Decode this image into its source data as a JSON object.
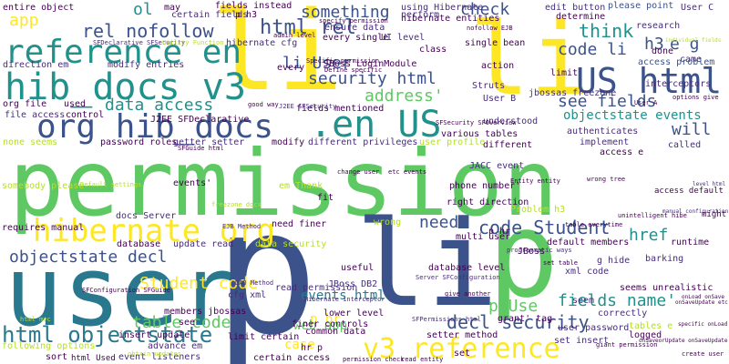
{
  "background": "#ffffff",
  "palette": {
    "yellow": "#fde725",
    "lightgreen": "#5ec962",
    "green": "#21918c",
    "teal": "#2a788e",
    "navy": "#3b528b",
    "purple": "#472d7b",
    "lime": "#b5de2b",
    "dark": "#440154"
  },
  "words": [
    {
      "text": "permission",
      "color": "#5ec962"
    },
    {
      "text": "user",
      "color": "#2a788e"
    },
    {
      "text": "p",
      "color": "#3b528b"
    },
    {
      "text": "li",
      "color": "#fde725"
    },
    {
      "text": "li",
      "color": "#fde725"
    },
    {
      "text": "li",
      "color": "#3b528b"
    },
    {
      "text": "p",
      "color": "#5ec962"
    },
    {
      "text": "hib_docs v3",
      "color": "#21918c"
    },
    {
      "text": "reference en",
      "color": "#21918c"
    },
    {
      "text": "org hib_docs",
      "color": "#3b528b"
    },
    {
      "text": ".en US",
      "color": "#21918c"
    },
    {
      "text": "US html",
      "color": "#3b528b"
    },
    {
      "text": "hibernate org",
      "color": "#fde725"
    },
    {
      "text": "v3 reference",
      "color": "#fde725"
    },
    {
      "text": "html objectstate",
      "color": "#2a788e"
    },
    {
      "text": "code Student",
      "color": "#3b528b"
    },
    {
      "text": "rel nofollow",
      "color": "#3b528b"
    },
    {
      "text": "html rel",
      "color": "#3b528b"
    },
    {
      "text": "security html",
      "color": "#3b528b"
    },
    {
      "text": "data access",
      "color": "#21918c"
    },
    {
      "text": "objectstate decl",
      "color": "#3b528b"
    },
    {
      "text": "decl security",
      "color": "#3b528b"
    },
    {
      "text": "see fields",
      "color": "#3b528b"
    },
    {
      "text": "fields name'",
      "color": "#21918c"
    },
    {
      "text": "table code",
      "color": "#5ec962"
    },
    {
      "text": "Student code",
      "color": "#fde725"
    },
    {
      "text": "li User",
      "color": "#3b528b"
    },
    {
      "text": "code li",
      "color": "#3b528b"
    },
    {
      "text": "something",
      "color": "#3b528b"
    },
    {
      "text": "check",
      "color": "#3b528b"
    },
    {
      "text": "address'",
      "color": "#5ec962"
    },
    {
      "text": "think",
      "color": "#21918c"
    },
    {
      "text": "will",
      "color": "#3b528b"
    },
    {
      "text": "app",
      "color": "#fde725"
    },
    {
      "text": "ol",
      "color": "#21918c"
    },
    {
      "text": "h3",
      "color": "#3b528b"
    },
    {
      "text": "e g",
      "color": "#3b528b"
    },
    {
      "text": "href",
      "color": "#21918c"
    },
    {
      "text": "p br",
      "color": "#fde725"
    },
    {
      "text": "p Use",
      "color": "#5ec962"
    },
    {
      "text": "web app",
      "color": "#5ec962"
    },
    {
      "text": "case",
      "color": "#fde725"
    },
    {
      "text": "need",
      "color": "#3b528b"
    },
    {
      "text": "events html",
      "color": "#2a788e"
    },
    {
      "text": "objectstate events",
      "color": "#21918c"
    },
    {
      "text": "entire object",
      "color": "#440154"
    },
    {
      "text": "certain fields",
      "color": "#472d7b"
    },
    {
      "text": "fields instead",
      "color": "#440154"
    },
    {
      "text": "using Hibernate",
      "color": "#472d7b"
    },
    {
      "text": "hibernate entities",
      "color": "#440154"
    },
    {
      "text": "edit button",
      "color": "#472d7b"
    },
    {
      "text": "please point",
      "color": "#3b528b"
    },
    {
      "text": "User C",
      "color": "#472d7b"
    },
    {
      "text": "determine",
      "color": "#440154"
    },
    {
      "text": "research",
      "color": "#472d7b"
    },
    {
      "text": "done",
      "color": "#440154"
    },
    {
      "text": "came",
      "color": "#472d7b"
    },
    {
      "text": "access problem",
      "color": "#3b528b"
    },
    {
      "text": "org file",
      "color": "#440154"
    },
    {
      "text": "used",
      "color": "#440154"
    },
    {
      "text": "file access",
      "color": "#472d7b"
    },
    {
      "text": "control",
      "color": "#440154"
    },
    {
      "text": "password roles",
      "color": "#440154"
    },
    {
      "text": "getter setter",
      "color": "#472d7b"
    },
    {
      "text": "modify",
      "color": "#440154"
    },
    {
      "text": "different privileges",
      "color": "#472d7b"
    },
    {
      "text": "user profile",
      "color": "#b5de2b"
    },
    {
      "text": "different",
      "color": "#440154"
    },
    {
      "text": "authenticates",
      "color": "#472d7b"
    },
    {
      "text": "implement",
      "color": "#472d7b"
    },
    {
      "text": "called",
      "color": "#472d7b"
    },
    {
      "text": "access e",
      "color": "#440154"
    },
    {
      "text": "various tables",
      "color": "#440154"
    },
    {
      "text": "understood",
      "color": "#472d7b"
    },
    {
      "text": "User B",
      "color": "#472d7b"
    },
    {
      "text": "action",
      "color": "#440154"
    },
    {
      "text": "Struts",
      "color": "#472d7b"
    },
    {
      "text": "JBoss LoginModule",
      "color": "#440154"
    },
    {
      "text": "single bean",
      "color": "#440154"
    },
    {
      "text": "hibernate cfg",
      "color": "#472d7b"
    },
    {
      "text": "UI level",
      "color": "#472d7b"
    },
    {
      "text": "every single",
      "color": "#440154"
    },
    {
      "text": "ensure data",
      "color": "#472d7b"
    },
    {
      "text": "perform",
      "color": "#472d7b"
    },
    {
      "text": "class",
      "color": "#440154"
    },
    {
      "text": "p h3",
      "color": "#440154"
    },
    {
      "text": "may",
      "color": "#440154"
    },
    {
      "text": "every",
      "color": "#440154"
    },
    {
      "text": "fields mentioned",
      "color": "#440154"
    },
    {
      "text": "direction em",
      "color": "#472d7b"
    },
    {
      "text": "modify entries",
      "color": "#472d7b"
    },
    {
      "text": "none seems",
      "color": "#b5de2b"
    },
    {
      "text": "JACC event",
      "color": "#472d7b"
    },
    {
      "text": "events'",
      "color": "#440154"
    },
    {
      "text": "docs Server",
      "color": "#472d7b"
    },
    {
      "text": "fit",
      "color": "#440154"
    },
    {
      "text": "database",
      "color": "#440154"
    },
    {
      "text": "update read",
      "color": "#472d7b"
    },
    {
      "text": "data security",
      "color": "#b5de2b"
    },
    {
      "text": "wrong",
      "color": "#b5de2b"
    },
    {
      "text": "multi user",
      "color": "#440154"
    },
    {
      "text": "JBoss",
      "color": "#440154"
    },
    {
      "text": "runtime",
      "color": "#440154"
    },
    {
      "text": "barking",
      "color": "#472d7b"
    },
    {
      "text": "useful",
      "color": "#440154"
    },
    {
      "text": "JBoss DB2",
      "color": "#472d7b"
    },
    {
      "text": "lower level",
      "color": "#440154"
    },
    {
      "text": "common data",
      "color": "#440154"
    },
    {
      "text": "correctly",
      "color": "#472d7b"
    },
    {
      "text": "tables e",
      "color": "#b5de2b"
    },
    {
      "text": "seem",
      "color": "#472d7b"
    },
    {
      "text": "user password",
      "color": "#472d7b"
    },
    {
      "text": "grant' tag",
      "color": "#440154"
    },
    {
      "text": "finer controls",
      "color": "#440154"
    },
    {
      "text": "limit certain",
      "color": "#440154"
    },
    {
      "text": "setter method",
      "color": "#440154"
    },
    {
      "text": "logged",
      "color": "#440154"
    },
    {
      "text": "set insert",
      "color": "#472d7b"
    },
    {
      "text": "following options",
      "color": "#b5de2b"
    },
    {
      "text": "sort",
      "color": "#440154"
    },
    {
      "text": "event listeners",
      "color": "#472d7b"
    },
    {
      "text": "advance em",
      "color": "#472d7b"
    },
    {
      "text": "certain access",
      "color": "#440154"
    },
    {
      "text": "hr p",
      "color": "#440154"
    },
    {
      "text": "see",
      "color": "#440154"
    },
    {
      "text": "members jbossas",
      "color": "#440154"
    },
    {
      "text": "insert update",
      "color": "#440154"
    },
    {
      "text": "requires manual",
      "color": "#440154"
    },
    {
      "text": "html Used",
      "color": "#440154"
    },
    {
      "text": "phone number'",
      "color": "#440154"
    },
    {
      "text": "database level",
      "color": "#440154"
    },
    {
      "text": "right direction",
      "color": "#440154"
    },
    {
      "text": "need finer",
      "color": "#440154"
    },
    {
      "text": "read permission",
      "color": "#472d7b"
    },
    {
      "text": "xml code",
      "color": "#472d7b"
    },
    {
      "text": "g hide",
      "color": "#472d7b"
    },
    {
      "text": "default members",
      "color": "#440154"
    },
    {
      "text": "access default",
      "color": "#440154"
    },
    {
      "text": "seems unrealistic",
      "color": "#440154"
    },
    {
      "text": "manual configuration",
      "color": "#472d7b"
    },
    {
      "text": "level html",
      "color": "#472d7b"
    },
    {
      "text": "might",
      "color": "#440154"
    },
    {
      "text": "interceptors",
      "color": "#472d7b"
    },
    {
      "text": "limit",
      "color": "#440154"
    },
    {
      "text": "jbossas freezone",
      "color": "#472d7b"
    },
    {
      "text": "J2EE SFDeclarative",
      "color": "#440154"
    },
    {
      "text": "p hr",
      "color": "#440154"
    },
    {
      "text": "set",
      "color": "#440154"
    },
    {
      "text": "cfg xml",
      "color": "#472d7b"
    },
    {
      "text": "em Thank",
      "color": "#b5de2b"
    },
    {
      "text": "somebody please",
      "color": "#b5de2b"
    },
    {
      "text": "Problem h3",
      "color": "#b5de2b"
    },
    {
      "text": "specific onLoad",
      "color": "#440154"
    },
    {
      "text": "giant permission",
      "color": "#440154"
    },
    {
      "text": "Server SFConfiguration",
      "color": "#472d7b"
    },
    {
      "text": "SFConfiguration SFGuide",
      "color": "#440154"
    },
    {
      "text": "SFGuide html",
      "color": "#440154"
    },
    {
      "text": "freezone docs",
      "color": "#b5de2b"
    },
    {
      "text": "DAO Method",
      "color": "#472d7b"
    },
    {
      "text": "SFPermissions html",
      "color": "#472d7b"
    },
    {
      "text": "SFDeclarative SFSecurity",
      "color": "#472d7b"
    },
    {
      "text": "Utility Function",
      "color": "#b5de2b"
    },
    {
      "text": "change user",
      "color": "#440154"
    },
    {
      "text": "etc events",
      "color": "#440154"
    },
    {
      "text": "wrong tree",
      "color": "#440154"
    },
    {
      "text": "good way",
      "color": "#440154"
    },
    {
      "text": "nofollow EJB",
      "color": "#440154"
    },
    {
      "text": "specify permission",
      "color": "#440154"
    },
    {
      "text": "admin level",
      "color": "#440154"
    },
    {
      "text": "Define specific",
      "color": "#440154"
    },
    {
      "text": "programmatic ways",
      "color": "#472d7b"
    },
    {
      "text": "individual fields",
      "color": "#b5de2b"
    },
    {
      "text": "options give",
      "color": "#440154"
    },
    {
      "text": "Hibernate interceptor",
      "color": "#472d7b"
    },
    {
      "text": "J2EE SFSecurity",
      "color": "#472d7b"
    },
    {
      "text": "SFSecurity SFOverview",
      "color": "#440154"
    },
    {
      "text": "onLoad onSave",
      "color": "#440154"
    },
    {
      "text": "onSaveUpdate etc",
      "color": "#440154"
    },
    {
      "text": "onSaveorUpdate onSaveUpdate",
      "color": "#440154"
    },
    {
      "text": "give another",
      "color": "#440154"
    },
    {
      "text": "EJB Method",
      "color": "#472d7b"
    },
    {
      "text": "User A",
      "color": "#440154"
    },
    {
      "text": "Specific permission",
      "color": "#440154"
    },
    {
      "text": "set table",
      "color": "#440154"
    },
    {
      "text": "table everytime",
      "color": "#440154"
    },
    {
      "text": "unintelligent hibe",
      "color": "#440154"
    },
    {
      "text": "obtain updates",
      "color": "#b5de2b"
    },
    {
      "text": "Default settings",
      "color": "#b5de2b"
    },
    {
      "text": "html mvc",
      "color": "#b5de2b"
    },
    {
      "text": "Entity entity",
      "color": "#440154"
    },
    {
      "text": "create user",
      "color": "#440154"
    },
    {
      "text": "permission check",
      "color": "#440154"
    },
    {
      "text": "read entity",
      "color": "#440154"
    }
  ]
}
